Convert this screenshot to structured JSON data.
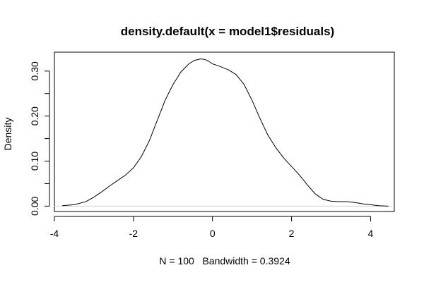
{
  "chart_data": {
    "type": "line",
    "title": "density.default(x = model1$residuals)",
    "xlabel": "N = 100   Bandwidth = 0.3924",
    "ylabel": "Density",
    "xlim": [
      -4.0,
      4.6
    ],
    "ylim": [
      -0.012,
      0.342
    ],
    "x_ticks": [
      -4,
      -2,
      0,
      2,
      4
    ],
    "x_tick_labels": [
      "-4",
      "-2",
      "0",
      "2",
      "4"
    ],
    "y_ticks": [
      0.0,
      0.05,
      0.1,
      0.15,
      0.2,
      0.25,
      0.3
    ],
    "y_tick_labels": [
      "0.00",
      "",
      "0.10",
      "",
      "0.20",
      "",
      "0.30"
    ],
    "grid": false,
    "series": [
      {
        "x": [
          -3.8,
          -3.5,
          -3.2,
          -3.0,
          -2.8,
          -2.6,
          -2.4,
          -2.2,
          -2.0,
          -1.8,
          -1.6,
          -1.4,
          -1.2,
          -1.0,
          -0.8,
          -0.6,
          -0.45,
          -0.3,
          -0.2,
          -0.1,
          0.0,
          0.2,
          0.4,
          0.6,
          0.8,
          1.0,
          1.2,
          1.4,
          1.6,
          1.8,
          2.0,
          2.2,
          2.4,
          2.6,
          2.8,
          3.0,
          3.2,
          3.4,
          3.6,
          3.8,
          4.0,
          4.2,
          4.45
        ],
        "y": [
          0.001,
          0.003,
          0.01,
          0.02,
          0.032,
          0.045,
          0.057,
          0.069,
          0.085,
          0.11,
          0.145,
          0.19,
          0.235,
          0.27,
          0.298,
          0.316,
          0.324,
          0.327,
          0.326,
          0.322,
          0.316,
          0.31,
          0.303,
          0.292,
          0.27,
          0.235,
          0.195,
          0.158,
          0.13,
          0.107,
          0.088,
          0.069,
          0.047,
          0.027,
          0.015,
          0.011,
          0.01,
          0.01,
          0.008,
          0.005,
          0.003,
          0.001,
          0.0
        ]
      }
    ]
  }
}
